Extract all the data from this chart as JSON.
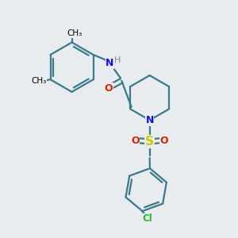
{
  "background_color": "#e8ecee",
  "line_color": "#3a7a8a",
  "bond_lw": 1.6,
  "figsize": [
    3.0,
    3.0
  ],
  "dpi": 100,
  "xlim": [
    0,
    10
  ],
  "ylim": [
    0,
    10
  ],
  "colors": {
    "bond": "#3a7a8a",
    "N": "#1010ee",
    "O": "#dd2200",
    "S": "#cccc00",
    "Cl": "#22bb22",
    "H": "#888888",
    "C": "#000000",
    "methyl": "#000000"
  }
}
